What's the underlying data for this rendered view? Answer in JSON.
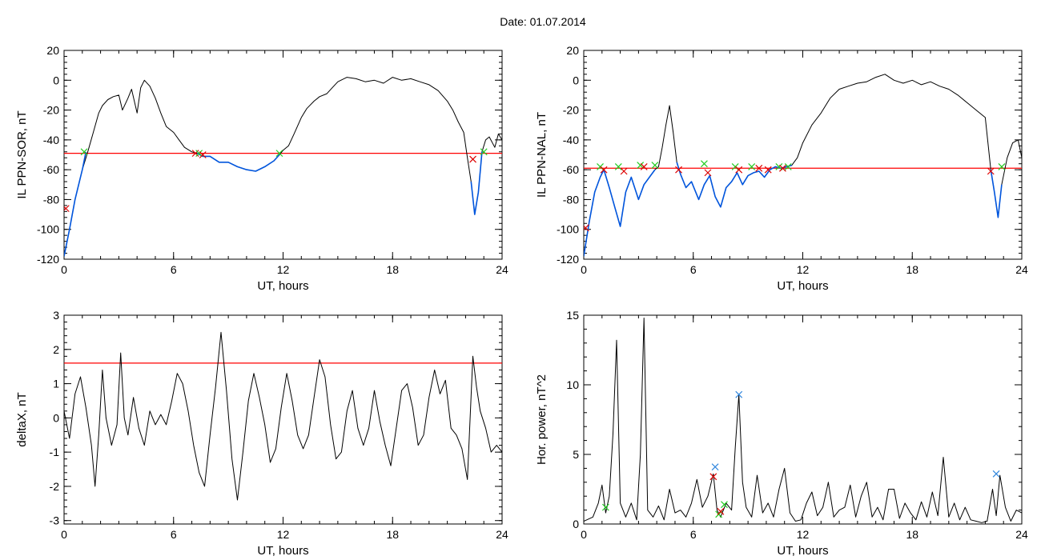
{
  "figure": {
    "title": "Date:  01.07.2014"
  },
  "chart_data": [
    {
      "type": "line",
      "title": "",
      "xlabel": "UT, hours",
      "ylabel": "IL PPN-SOR, nT",
      "xlim": [
        0,
        24
      ],
      "ylim": [
        -120,
        20
      ],
      "xticks": [
        0,
        6,
        12,
        18,
        24
      ],
      "yticks": [
        -120,
        -100,
        -80,
        -60,
        -40,
        -20,
        0,
        20
      ],
      "threshold": {
        "y": -49,
        "color": "#ff0000"
      },
      "series": [
        {
          "color": "#000000",
          "x": [
            0,
            0.3,
            0.6,
            1.0,
            1.3,
            1.6,
            1.9,
            2.1,
            2.4,
            2.7,
            3.0,
            3.2,
            3.5,
            3.7,
            4.0,
            4.2,
            4.4,
            4.7,
            5.0,
            5.3,
            5.6,
            6.0,
            6.3,
            6.6,
            7.0,
            7.3,
            7.6,
            8.0,
            8.5,
            9.0,
            9.5,
            10.0,
            10.5,
            11.0,
            11.5,
            11.8,
            12.0,
            12.3,
            12.6,
            13.0,
            13.3,
            13.7,
            14.0,
            14.4,
            14.7,
            15.0,
            15.5,
            16.0,
            16.5,
            17.0,
            17.5,
            18.0,
            18.5,
            19.0,
            19.5,
            20.0,
            20.5,
            21.0,
            21.3,
            21.6,
            21.9,
            22.1,
            22.3,
            22.5,
            22.7,
            22.9,
            23.1,
            23.3,
            23.6,
            23.8,
            24.0
          ],
          "y": [
            -118,
            -100,
            -80,
            -60,
            -48,
            -35,
            -22,
            -17,
            -13,
            -11,
            -10,
            -20,
            -12,
            -6,
            -22,
            -5,
            0,
            -4,
            -12,
            -22,
            -31,
            -35,
            -40,
            -45,
            -48,
            -49,
            -51,
            -51,
            -55,
            -55,
            -58,
            -60,
            -61,
            -58,
            -54,
            -50,
            -47,
            -44,
            -36,
            -25,
            -19,
            -14,
            -11,
            -9,
            -5,
            -1,
            2,
            1,
            -1,
            0,
            -2,
            2,
            0,
            1,
            -1,
            -3,
            -7,
            -14,
            -20,
            -28,
            -35,
            -52,
            -68,
            -90,
            -75,
            -48,
            -40,
            -38,
            -45,
            -36,
            -40
          ]
        },
        {
          "color": "#0055dd",
          "x": [
            0,
            0.3,
            0.6,
            1.0,
            1.2
          ],
          "y": [
            -118,
            -100,
            -80,
            -60,
            -48
          ]
        },
        {
          "color": "#0055dd",
          "x": [
            7.3,
            7.6,
            8.0,
            8.5,
            9.0,
            9.5,
            10.0,
            10.5,
            11.0,
            11.5,
            11.8
          ],
          "y": [
            -49,
            -51,
            -51,
            -55,
            -55,
            -58,
            -60,
            -61,
            -58,
            -54,
            -50
          ]
        },
        {
          "color": "#0055dd",
          "x": [
            22.3,
            22.5,
            22.7,
            22.9
          ],
          "y": [
            -68,
            -90,
            -75,
            -48
          ]
        }
      ],
      "markers": [
        {
          "x": 0.1,
          "y": -86,
          "color": "#dd0000"
        },
        {
          "x": 1.1,
          "y": -48,
          "color": "#22cc22"
        },
        {
          "x": 7.2,
          "y": -49,
          "color": "#dd0000"
        },
        {
          "x": 7.4,
          "y": -49,
          "color": "#22cc22"
        },
        {
          "x": 7.6,
          "y": -50,
          "color": "#dd0000"
        },
        {
          "x": 11.8,
          "y": -49,
          "color": "#22cc22"
        },
        {
          "x": 22.4,
          "y": -53,
          "color": "#dd0000"
        },
        {
          "x": 23.0,
          "y": -48,
          "color": "#22cc22"
        }
      ]
    },
    {
      "type": "line",
      "title": "",
      "xlabel": "UT, hours",
      "ylabel": "IL PPN-NAL, nT",
      "xlim": [
        0,
        24
      ],
      "ylim": [
        -120,
        20
      ],
      "xticks": [
        0,
        6,
        12,
        18,
        24
      ],
      "yticks": [
        -120,
        -100,
        -80,
        -60,
        -40,
        -20,
        0,
        20
      ],
      "threshold": {
        "y": -59,
        "color": "#ff0000"
      },
      "series": [
        {
          "color": "#000000",
          "x": [
            0,
            0.3,
            0.6,
            0.9,
            1.1,
            1.4,
            1.7,
            2.0,
            2.3,
            2.6,
            3.0,
            3.3,
            3.6,
            3.9,
            4.1,
            4.3,
            4.5,
            4.7,
            4.9,
            5.1,
            5.3,
            5.6,
            5.9,
            6.3,
            6.6,
            6.9,
            7.2,
            7.5,
            7.8,
            8.1,
            8.4,
            8.7,
            9.0,
            9.3,
            9.6,
            9.9,
            10.2,
            10.5,
            10.8,
            11.1,
            11.4,
            11.7,
            12.0,
            12.5,
            13.0,
            13.5,
            14.0,
            14.5,
            15.0,
            15.5,
            16.0,
            16.5,
            17.0,
            17.5,
            18.0,
            18.5,
            19.0,
            19.5,
            20.0,
            20.5,
            21.0,
            21.5,
            22.0,
            22.3,
            22.5,
            22.7,
            22.9,
            23.2,
            23.5,
            23.8,
            24.0
          ],
          "y": [
            -118,
            -95,
            -75,
            -65,
            -60,
            -72,
            -85,
            -98,
            -75,
            -65,
            -80,
            -70,
            -65,
            -60,
            -58,
            -45,
            -30,
            -17,
            -35,
            -55,
            -63,
            -72,
            -68,
            -80,
            -70,
            -64,
            -78,
            -85,
            -72,
            -68,
            -62,
            -70,
            -64,
            -62,
            -61,
            -65,
            -60,
            -58,
            -59,
            -58,
            -57,
            -52,
            -42,
            -30,
            -22,
            -12,
            -6,
            -4,
            -2,
            -1,
            2,
            4,
            0,
            -2,
            0,
            -3,
            -1,
            -4,
            -6,
            -10,
            -15,
            -20,
            -25,
            -60,
            -75,
            -92,
            -70,
            -52,
            -42,
            -40,
            -52
          ]
        },
        {
          "color": "#0055dd",
          "x": [
            0,
            0.3,
            0.6,
            0.9,
            1.1,
            1.4,
            1.7,
            2.0,
            2.3,
            2.6,
            3.0,
            3.3,
            3.6,
            3.9
          ],
          "y": [
            -118,
            -95,
            -75,
            -65,
            -60,
            -72,
            -85,
            -98,
            -75,
            -65,
            -80,
            -70,
            -65,
            -60
          ]
        },
        {
          "color": "#0055dd",
          "x": [
            5.1,
            5.3,
            5.6,
            5.9,
            6.3,
            6.6,
            6.9,
            7.2,
            7.5,
            7.8,
            8.1,
            8.4,
            8.7,
            9.0,
            9.3,
            9.6,
            9.9,
            10.2,
            10.5,
            10.8,
            11.1,
            11.4
          ],
          "y": [
            -55,
            -63,
            -72,
            -68,
            -80,
            -70,
            -64,
            -78,
            -85,
            -72,
            -68,
            -62,
            -70,
            -64,
            -62,
            -61,
            -65,
            -60,
            -58,
            -59,
            -58,
            -57
          ]
        },
        {
          "color": "#0055dd",
          "x": [
            22.3,
            22.5,
            22.7,
            22.9
          ],
          "y": [
            -60,
            -75,
            -92,
            -70
          ]
        }
      ],
      "markers": [
        {
          "x": 0.1,
          "y": -99,
          "color": "#dd0000"
        },
        {
          "x": 0.9,
          "y": -58,
          "color": "#22cc22"
        },
        {
          "x": 1.1,
          "y": -60,
          "color": "#dd0000"
        },
        {
          "x": 1.9,
          "y": -58,
          "color": "#22cc22"
        },
        {
          "x": 2.2,
          "y": -61,
          "color": "#dd0000"
        },
        {
          "x": 3.1,
          "y": -57,
          "color": "#22cc22"
        },
        {
          "x": 3.3,
          "y": -58,
          "color": "#dd0000"
        },
        {
          "x": 3.9,
          "y": -57,
          "color": "#22cc22"
        },
        {
          "x": 5.2,
          "y": -60,
          "color": "#dd0000"
        },
        {
          "x": 6.6,
          "y": -56,
          "color": "#22cc22"
        },
        {
          "x": 6.8,
          "y": -62,
          "color": "#dd0000"
        },
        {
          "x": 8.3,
          "y": -58,
          "color": "#22cc22"
        },
        {
          "x": 8.5,
          "y": -60,
          "color": "#dd0000"
        },
        {
          "x": 9.2,
          "y": -58,
          "color": "#22cc22"
        },
        {
          "x": 9.6,
          "y": -59,
          "color": "#dd0000"
        },
        {
          "x": 10.1,
          "y": -60,
          "color": "#dd0000"
        },
        {
          "x": 10.7,
          "y": -58,
          "color": "#22cc22"
        },
        {
          "x": 10.9,
          "y": -59,
          "color": "#dd0000"
        },
        {
          "x": 11.2,
          "y": -58,
          "color": "#22cc22"
        },
        {
          "x": 22.3,
          "y": -61,
          "color": "#dd0000"
        },
        {
          "x": 22.9,
          "y": -58,
          "color": "#22cc22"
        }
      ]
    },
    {
      "type": "line",
      "title": "",
      "xlabel": "UT, hours",
      "ylabel": "deltaX, nT",
      "xlim": [
        0,
        24
      ],
      "ylim": [
        -3.1,
        3
      ],
      "xticks": [
        0,
        6,
        12,
        18,
        24
      ],
      "yticks": [
        -3,
        -2,
        -1,
        0,
        1,
        2,
        3
      ],
      "threshold": {
        "y": 1.6,
        "color": "#ff0000"
      },
      "series": [
        {
          "color": "#000000",
          "x": [
            0,
            0.3,
            0.6,
            0.9,
            1.2,
            1.5,
            1.7,
            1.9,
            2.1,
            2.3,
            2.6,
            2.9,
            3.1,
            3.3,
            3.5,
            3.8,
            4.1,
            4.4,
            4.7,
            5.0,
            5.3,
            5.6,
            5.9,
            6.2,
            6.5,
            6.8,
            7.1,
            7.4,
            7.7,
            8.0,
            8.3,
            8.6,
            8.9,
            9.2,
            9.5,
            9.8,
            10.1,
            10.4,
            10.7,
            11.0,
            11.3,
            11.6,
            11.9,
            12.2,
            12.5,
            12.8,
            13.1,
            13.4,
            13.7,
            14.0,
            14.3,
            14.6,
            14.9,
            15.2,
            15.5,
            15.8,
            16.1,
            16.4,
            16.7,
            17.0,
            17.3,
            17.6,
            17.9,
            18.2,
            18.5,
            18.8,
            19.1,
            19.4,
            19.7,
            20.0,
            20.3,
            20.6,
            20.9,
            21.2,
            21.5,
            21.8,
            22.1,
            22.4,
            22.6,
            22.8,
            23.1,
            23.4,
            23.7,
            24.0
          ],
          "y": [
            0.2,
            -0.6,
            0.7,
            1.2,
            0.3,
            -0.8,
            -2.0,
            -0.5,
            1.4,
            0.0,
            -0.8,
            -0.2,
            1.9,
            0.0,
            -0.5,
            0.6,
            -0.3,
            -0.8,
            0.2,
            -0.2,
            0.1,
            -0.2,
            0.5,
            1.3,
            1.0,
            0.2,
            -0.8,
            -1.6,
            -2.0,
            -0.5,
            0.9,
            2.5,
            0.8,
            -1.2,
            -2.4,
            -1.0,
            0.5,
            1.3,
            0.6,
            -0.2,
            -1.3,
            -0.9,
            0.3,
            1.3,
            0.5,
            -0.5,
            -0.9,
            -0.5,
            0.6,
            1.7,
            1.2,
            -0.2,
            -1.2,
            -1.0,
            0.2,
            0.8,
            -0.3,
            -0.8,
            -0.3,
            0.8,
            -0.1,
            -0.8,
            -1.4,
            -0.3,
            0.8,
            1.0,
            0.3,
            -0.8,
            -0.5,
            0.6,
            1.4,
            0.7,
            1.1,
            -0.3,
            -0.5,
            -0.9,
            -1.8,
            1.8,
            0.9,
            0.2,
            -0.3,
            -1.0,
            -0.8,
            -1.0
          ]
        }
      ],
      "markers": []
    },
    {
      "type": "line",
      "title": "",
      "xlabel": "UT, hours",
      "ylabel": "Hor. power, nT^2",
      "xlim": [
        0,
        24
      ],
      "ylim": [
        0,
        15
      ],
      "xticks": [
        0,
        6,
        12,
        18,
        24
      ],
      "yticks": [
        0,
        5,
        10,
        15
      ],
      "threshold": null,
      "series": [
        {
          "color": "#000000",
          "x": [
            0,
            0.5,
            0.8,
            1.0,
            1.2,
            1.4,
            1.6,
            1.8,
            2.0,
            2.3,
            2.6,
            2.9,
            3.1,
            3.3,
            3.5,
            3.8,
            4.1,
            4.4,
            4.7,
            5.0,
            5.3,
            5.6,
            5.9,
            6.2,
            6.5,
            6.8,
            7.1,
            7.3,
            7.5,
            7.8,
            8.1,
            8.3,
            8.5,
            8.7,
            8.9,
            9.2,
            9.5,
            9.8,
            10.1,
            10.4,
            10.7,
            11.0,
            11.3,
            11.6,
            11.9,
            12.2,
            12.5,
            12.8,
            13.1,
            13.4,
            13.7,
            14.0,
            14.3,
            14.6,
            14.9,
            15.2,
            15.5,
            15.8,
            16.1,
            16.4,
            16.7,
            17.0,
            17.3,
            17.6,
            17.9,
            18.2,
            18.5,
            18.8,
            19.1,
            19.4,
            19.7,
            20.0,
            20.3,
            20.6,
            20.9,
            21.2,
            21.5,
            21.8,
            22.1,
            22.4,
            22.6,
            22.8,
            23.1,
            23.4,
            23.7,
            24.0
          ],
          "y": [
            0.2,
            0.5,
            1.5,
            2.8,
            0.8,
            2.0,
            6.5,
            13.2,
            1.5,
            0.5,
            1.5,
            0.3,
            5.0,
            14.8,
            1.0,
            0.5,
            1.3,
            0.3,
            2.5,
            0.8,
            1.0,
            0.5,
            1.5,
            3.2,
            1.2,
            2.0,
            3.6,
            1.0,
            0.5,
            1.5,
            1.0,
            5.5,
            9.3,
            3.0,
            1.2,
            0.5,
            3.5,
            0.8,
            1.5,
            0.5,
            2.5,
            4.0,
            0.8,
            0.2,
            0.3,
            1.5,
            2.3,
            0.6,
            1.2,
            3.0,
            0.5,
            1.0,
            1.2,
            2.8,
            0.5,
            2.0,
            3.0,
            0.5,
            1.2,
            0.3,
            2.5,
            2.5,
            0.4,
            1.5,
            0.8,
            0.3,
            1.6,
            0.5,
            2.3,
            0.6,
            4.8,
            0.5,
            1.5,
            0.3,
            1.2,
            0.3,
            0.2,
            0.1,
            0.2,
            2.5,
            0.6,
            3.5,
            1.2,
            0.2,
            1.0,
            0.8
          ]
        }
      ],
      "markers": [
        {
          "x": 1.2,
          "y": 1.2,
          "color": "#22cc22"
        },
        {
          "x": 7.1,
          "y": 3.4,
          "color": "#dd0000"
        },
        {
          "x": 7.2,
          "y": 4.1,
          "color": "#3388dd"
        },
        {
          "x": 7.4,
          "y": 0.7,
          "color": "#22cc22"
        },
        {
          "x": 7.5,
          "y": 0.9,
          "color": "#dd0000"
        },
        {
          "x": 7.7,
          "y": 1.4,
          "color": "#22cc22"
        },
        {
          "x": 8.5,
          "y": 9.3,
          "color": "#3388dd"
        },
        {
          "x": 22.6,
          "y": 3.6,
          "color": "#3388dd"
        }
      ]
    }
  ]
}
